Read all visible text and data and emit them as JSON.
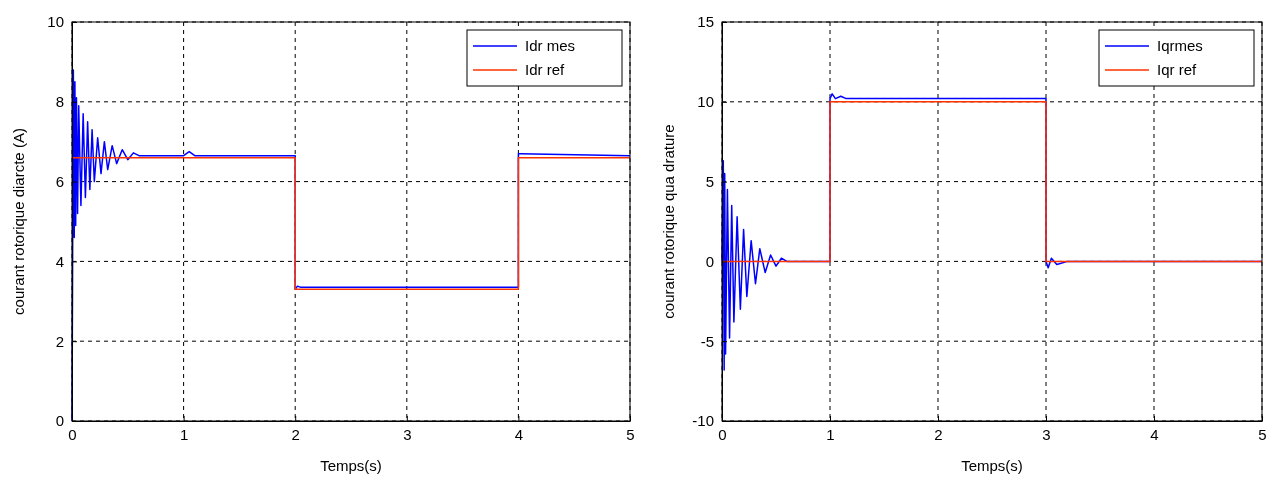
{
  "chart_data": [
    {
      "type": "line",
      "xlabel": "Temps(s)",
      "ylabel": "courant rotorique diarcte (A)",
      "xlim": [
        0,
        5
      ],
      "xticks": [
        0,
        1,
        2,
        3,
        4,
        5
      ],
      "ylim": [
        0,
        10
      ],
      "yticks": [
        0,
        2,
        4,
        6,
        8,
        10
      ],
      "grid": true,
      "legend": "top right",
      "line_style": "solid",
      "marker": "none",
      "series": [
        {
          "name": "Idr mes",
          "color": "#0000ff",
          "x": [
            0,
            0.012,
            0.02,
            0.026,
            0.033,
            0.04,
            0.05,
            0.06,
            0.08,
            0.1,
            0.12,
            0.14,
            0.16,
            0.18,
            0.2,
            0.23,
            0.26,
            0.29,
            0.32,
            0.36,
            0.4,
            0.45,
            0.5,
            0.55,
            0.6,
            1.0,
            1.05,
            1.1,
            2.0,
            2.0,
            2.02,
            2.05,
            4.0,
            4.0,
            4.02,
            5.0
          ],
          "values": [
            0,
            8.8,
            4.6,
            8.5,
            4.9,
            8.1,
            5.2,
            7.9,
            5.4,
            7.7,
            5.6,
            7.5,
            5.8,
            7.3,
            6.0,
            7.1,
            6.2,
            7.0,
            6.3,
            6.9,
            6.45,
            6.8,
            6.55,
            6.72,
            6.65,
            6.65,
            6.75,
            6.65,
            6.65,
            3.3,
            3.38,
            3.35,
            3.35,
            6.7,
            6.7,
            6.65
          ]
        },
        {
          "name": "Idr ref",
          "color": "#ff3300",
          "x": [
            0,
            2,
            2,
            4,
            4,
            5
          ],
          "values": [
            6.6,
            6.6,
            3.3,
            3.3,
            6.6,
            6.6
          ]
        }
      ]
    },
    {
      "type": "line",
      "xlabel": "Temps(s)",
      "ylabel": "courant rotorique qua drature",
      "xlim": [
        0,
        5
      ],
      "xticks": [
        0,
        1,
        2,
        3,
        4,
        5
      ],
      "ylim": [
        -10,
        15
      ],
      "yticks": [
        -10,
        -5,
        0,
        5,
        10,
        15
      ],
      "grid": true,
      "legend": "top right",
      "line_style": "solid",
      "marker": "none",
      "series": [
        {
          "name": "Iqrmes",
          "color": "#0000ff",
          "x": [
            0,
            0.012,
            0.02,
            0.025,
            0.033,
            0.05,
            0.07,
            0.09,
            0.11,
            0.14,
            0.17,
            0.2,
            0.23,
            0.27,
            0.31,
            0.35,
            0.4,
            0.45,
            0.5,
            0.55,
            0.6,
            1.0,
            1.0,
            1.02,
            1.05,
            1.1,
            1.15,
            3.0,
            3.0,
            3.02,
            3.05,
            3.1,
            3.2,
            5.0
          ],
          "values": [
            0,
            6.3,
            -6.8,
            5.5,
            -5.8,
            4.5,
            -4.8,
            3.5,
            -3.8,
            2.8,
            -3.0,
            2.0,
            -2.2,
            1.3,
            -1.4,
            0.8,
            -0.7,
            0.4,
            -0.3,
            0.2,
            0,
            0,
            10.2,
            10.5,
            10.2,
            10.35,
            10.2,
            10.2,
            0,
            -0.4,
            0.2,
            -0.2,
            0,
            0
          ]
        },
        {
          "name": "Iqr ref",
          "color": "#ff3300",
          "x": [
            0,
            1,
            1,
            3,
            3,
            5
          ],
          "values": [
            0,
            0,
            10,
            10,
            0,
            0
          ]
        }
      ]
    }
  ]
}
